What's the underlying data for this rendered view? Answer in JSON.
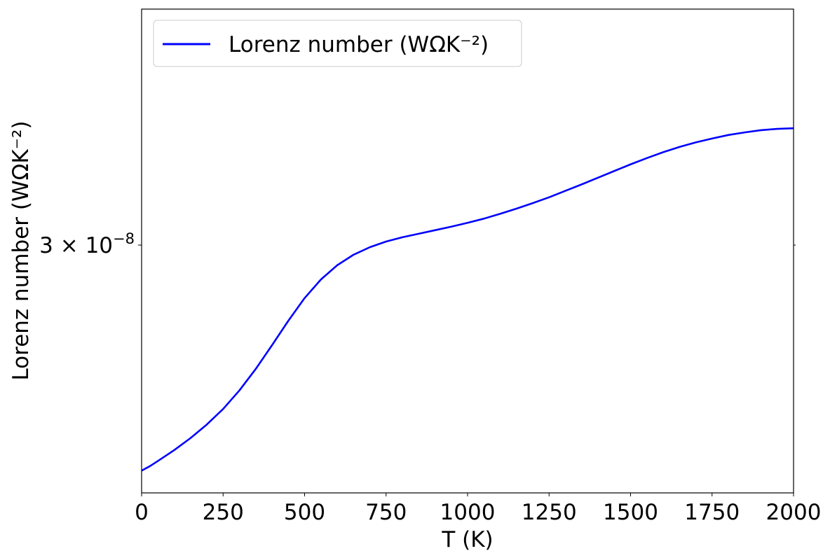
{
  "chart_data": {
    "type": "line",
    "xlabel": "T (K)",
    "ylabel": "Lorenz number (WΩK⁻²)",
    "xlim": [
      0,
      2000
    ],
    "ylim": [
      2.38e-08,
      3.74e-08
    ],
    "yscale": "log",
    "grid": false,
    "legend_position": "top-left",
    "x_ticks": [
      0,
      250,
      500,
      750,
      1000,
      1250,
      1500,
      1750,
      2000
    ],
    "x_tick_labels": [
      "0",
      "250",
      "500",
      "750",
      "1000",
      "1250",
      "1500",
      "1750",
      "2000"
    ],
    "y_ticks": [
      3e-08
    ],
    "y_tick_labels": [
      {
        "base": "3 × 10",
        "exp": "−8"
      }
    ],
    "series": [
      {
        "name": "Lorenz number (WΩK⁻²)",
        "color": "#0000ff",
        "x": [
          0,
          25,
          50,
          100,
          150,
          200,
          250,
          300,
          350,
          400,
          450,
          500,
          550,
          600,
          650,
          700,
          750,
          800,
          850,
          900,
          950,
          1000,
          1050,
          1100,
          1150,
          1200,
          1250,
          1300,
          1350,
          1400,
          1450,
          1500,
          1550,
          1600,
          1650,
          1700,
          1750,
          1800,
          1850,
          1900,
          1950,
          2000
        ],
        "y": [
          2.43e-08,
          2.44e-08,
          2.452e-08,
          2.477e-08,
          2.505e-08,
          2.537e-08,
          2.574e-08,
          2.619e-08,
          2.672e-08,
          2.732e-08,
          2.795e-08,
          2.855e-08,
          2.905e-08,
          2.944e-08,
          2.973e-08,
          2.994e-08,
          3.01e-08,
          3.022e-08,
          3.032e-08,
          3.042e-08,
          3.052e-08,
          3.063e-08,
          3.075e-08,
          3.089e-08,
          3.104e-08,
          3.12e-08,
          3.137e-08,
          3.156e-08,
          3.175e-08,
          3.195e-08,
          3.215e-08,
          3.235e-08,
          3.254e-08,
          3.272e-08,
          3.288e-08,
          3.302e-08,
          3.314e-08,
          3.325e-08,
          3.333e-08,
          3.34e-08,
          3.344e-08,
          3.346e-08
        ]
      }
    ]
  }
}
